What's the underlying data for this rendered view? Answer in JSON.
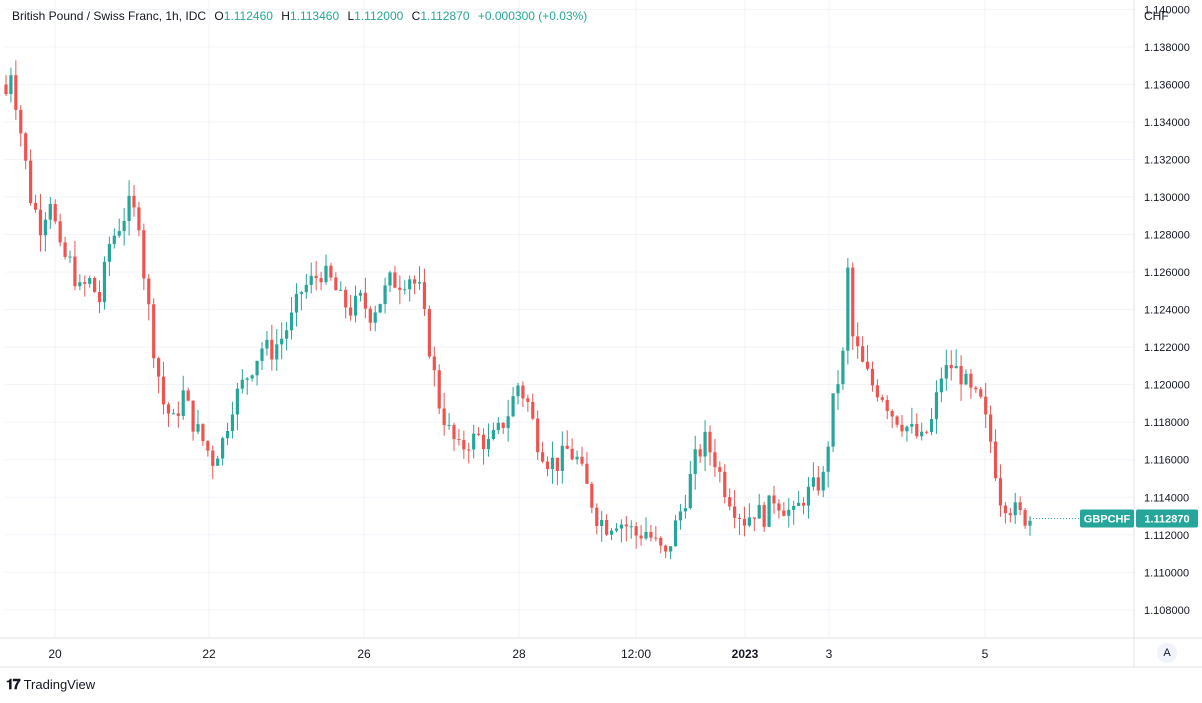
{
  "legend": {
    "symbol": "British Pound / Swiss Franc, 1h, IDC",
    "open_label": "O",
    "open": "1.112460",
    "high_label": "H",
    "high": "1.113460",
    "low_label": "L",
    "low": "1.112000",
    "close_label": "C",
    "close": "1.112870",
    "change": "+0.000300 (+0.03%)"
  },
  "price_scale": {
    "currency": "CHF",
    "auto_label": "A"
  },
  "price_tag": {
    "symbol": "GBPCHF",
    "value": "1.112870"
  },
  "branding": {
    "name": "TradingView"
  },
  "colors": {
    "up": "#26a69a",
    "down": "#ef5350",
    "grid": "#f0f3fa",
    "axis_text": "#131722"
  },
  "chart_data": {
    "type": "candlestick",
    "title": "British Pound / Swiss Franc, 1h, IDC",
    "x_ticks": [
      "20",
      "22",
      "26",
      "28",
      "12:00",
      "2023",
      "3",
      "5"
    ],
    "y_ticks": [
      "1.108000",
      "1.110000",
      "1.112000",
      "1.114000",
      "1.116000",
      "1.118000",
      "1.120000",
      "1.122000",
      "1.124000",
      "1.126000",
      "1.128000",
      "1.130000",
      "1.132000",
      "1.134000",
      "1.136000",
      "1.138000",
      "1.140000"
    ],
    "ylim": [
      1.1065,
      1.1405
    ],
    "grid": true,
    "last_price": 1.11287,
    "price_path": [
      [
        0,
        1.1355
      ],
      [
        1,
        1.1368
      ],
      [
        3,
        1.1335
      ],
      [
        5,
        1.13
      ],
      [
        7,
        1.1285
      ],
      [
        9,
        1.13
      ],
      [
        11,
        1.127
      ],
      [
        13,
        1.1265
      ],
      [
        15,
        1.125
      ],
      [
        17,
        1.1255
      ],
      [
        19,
        1.1245
      ],
      [
        21,
        1.1275
      ],
      [
        23,
        1.1285
      ],
      [
        25,
        1.1295
      ],
      [
        27,
        1.1288
      ],
      [
        28,
        1.126
      ],
      [
        30,
        1.122
      ],
      [
        32,
        1.119
      ],
      [
        34,
        1.118
      ],
      [
        36,
        1.1195
      ],
      [
        38,
        1.118
      ],
      [
        40,
        1.117
      ],
      [
        42,
        1.116
      ],
      [
        44,
        1.117
      ],
      [
        46,
        1.119
      ],
      [
        48,
        1.12
      ],
      [
        50,
        1.121
      ],
      [
        52,
        1.122
      ],
      [
        54,
        1.1218
      ],
      [
        56,
        1.1225
      ],
      [
        58,
        1.1235
      ],
      [
        60,
        1.125
      ],
      [
        62,
        1.1255
      ],
      [
        64,
        1.126
      ],
      [
        66,
        1.1255
      ],
      [
        68,
        1.1245
      ],
      [
        70,
        1.124
      ],
      [
        72,
        1.1245
      ],
      [
        74,
        1.1238
      ],
      [
        76,
        1.1245
      ],
      [
        78,
        1.1255
      ],
      [
        80,
        1.1255
      ],
      [
        82,
        1.1258
      ],
      [
        84,
        1.125
      ],
      [
        86,
        1.122
      ],
      [
        88,
        1.119
      ],
      [
        90,
        1.1175
      ],
      [
        92,
        1.1165
      ],
      [
        94,
        1.117
      ],
      [
        96,
        1.1172
      ],
      [
        98,
        1.1168
      ],
      [
        100,
        1.1175
      ],
      [
        102,
        1.1185
      ],
      [
        104,
        1.12
      ],
      [
        106,
        1.119
      ],
      [
        108,
        1.117
      ],
      [
        110,
        1.116
      ],
      [
        112,
        1.1158
      ],
      [
        114,
        1.1165
      ],
      [
        116,
        1.116
      ],
      [
        118,
        1.1145
      ],
      [
        120,
        1.113
      ],
      [
        122,
        1.1125
      ],
      [
        124,
        1.1128
      ],
      [
        126,
        1.1125
      ],
      [
        128,
        1.112
      ],
      [
        130,
        1.1122
      ],
      [
        132,
        1.1115
      ],
      [
        134,
        1.1108
      ],
      [
        136,
        1.1125
      ],
      [
        138,
        1.114
      ],
      [
        140,
        1.116
      ],
      [
        142,
        1.117
      ],
      [
        144,
        1.116
      ],
      [
        146,
        1.1145
      ],
      [
        148,
        1.1135
      ],
      [
        150,
        1.1128
      ],
      [
        152,
        1.1133
      ],
      [
        154,
        1.113
      ],
      [
        156,
        1.114
      ],
      [
        158,
        1.1135
      ],
      [
        160,
        1.113
      ],
      [
        162,
        1.114
      ],
      [
        164,
        1.1145
      ],
      [
        166,
        1.115
      ],
      [
        168,
        1.119
      ],
      [
        170,
        1.1215
      ],
      [
        171,
        1.126
      ],
      [
        172,
        1.1225
      ],
      [
        174,
        1.121
      ],
      [
        176,
        1.12
      ],
      [
        178,
        1.1195
      ],
      [
        180,
        1.1185
      ],
      [
        182,
        1.118
      ],
      [
        184,
        1.1175
      ],
      [
        186,
        1.117
      ],
      [
        188,
        1.118
      ],
      [
        190,
        1.1205
      ],
      [
        192,
        1.121
      ],
      [
        194,
        1.1205
      ],
      [
        196,
        1.1195
      ],
      [
        198,
        1.119
      ],
      [
        200,
        1.117
      ],
      [
        202,
        1.114
      ],
      [
        204,
        1.1135
      ],
      [
        206,
        1.113
      ],
      [
        208,
        1.11287
      ]
    ]
  }
}
